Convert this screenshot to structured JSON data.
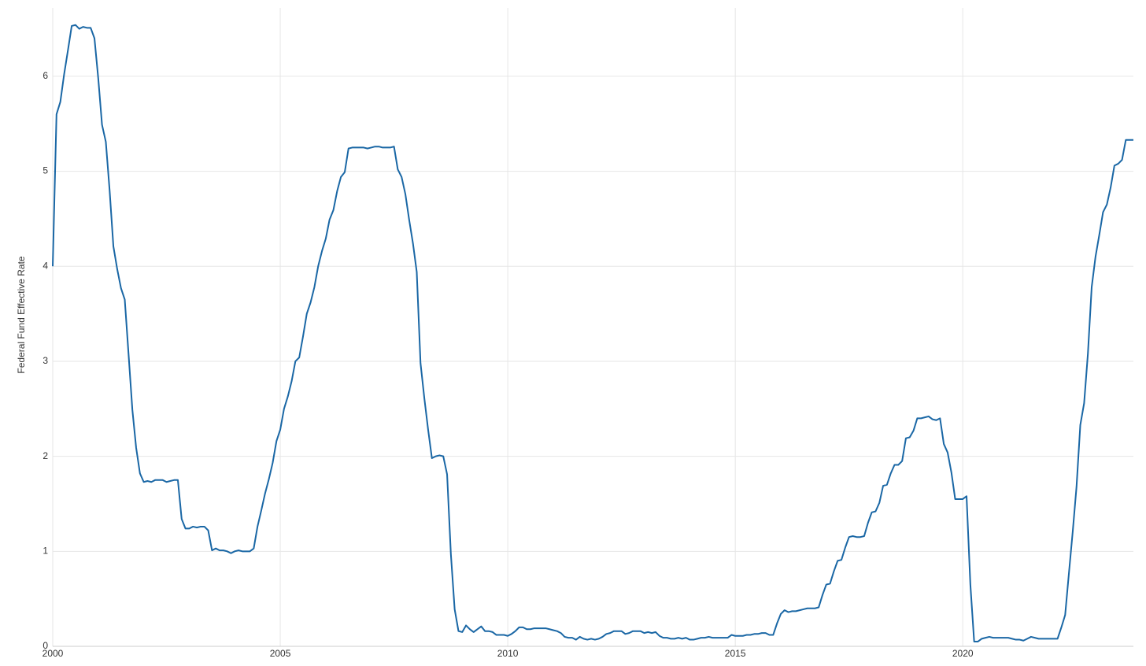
{
  "chart_data": {
    "type": "line",
    "ylabel": "Federal Fund Effective Rate",
    "xlim": [
      2000,
      2023.75
    ],
    "xticks": [
      2000,
      2005,
      2010,
      2015,
      2020
    ],
    "ylim": [
      0,
      6.72
    ],
    "yticks": [
      0,
      1,
      2,
      3,
      4,
      5,
      6
    ],
    "grid": true,
    "x": [
      2000,
      2000.083,
      2000.167,
      2000.25,
      2000.333,
      2000.417,
      2000.5,
      2000.583,
      2000.667,
      2000.75,
      2000.833,
      2000.917,
      2001,
      2001.083,
      2001.167,
      2001.25,
      2001.333,
      2001.417,
      2001.5,
      2001.583,
      2001.667,
      2001.75,
      2001.833,
      2001.917,
      2002,
      2002.083,
      2002.167,
      2002.25,
      2002.333,
      2002.417,
      2002.5,
      2002.583,
      2002.667,
      2002.75,
      2002.833,
      2002.917,
      2003,
      2003.083,
      2003.167,
      2003.25,
      2003.333,
      2003.417,
      2003.5,
      2003.583,
      2003.667,
      2003.75,
      2003.833,
      2003.917,
      2004,
      2004.083,
      2004.167,
      2004.25,
      2004.333,
      2004.417,
      2004.5,
      2004.583,
      2004.667,
      2004.75,
      2004.833,
      2004.917,
      2005,
      2005.083,
      2005.167,
      2005.25,
      2005.333,
      2005.417,
      2005.5,
      2005.583,
      2005.667,
      2005.75,
      2005.833,
      2005.917,
      2006,
      2006.083,
      2006.167,
      2006.25,
      2006.333,
      2006.417,
      2006.5,
      2006.583,
      2006.667,
      2006.75,
      2006.833,
      2006.917,
      2007,
      2007.083,
      2007.167,
      2007.25,
      2007.333,
      2007.417,
      2007.5,
      2007.583,
      2007.667,
      2007.75,
      2007.833,
      2007.917,
      2008,
      2008.083,
      2008.167,
      2008.25,
      2008.333,
      2008.417,
      2008.5,
      2008.583,
      2008.667,
      2008.75,
      2008.833,
      2008.917,
      2009,
      2009.083,
      2009.167,
      2009.25,
      2009.333,
      2009.417,
      2009.5,
      2009.583,
      2009.667,
      2009.75,
      2009.833,
      2009.917,
      2010,
      2010.083,
      2010.167,
      2010.25,
      2010.333,
      2010.417,
      2010.5,
      2010.583,
      2010.667,
      2010.75,
      2010.833,
      2010.917,
      2011,
      2011.083,
      2011.167,
      2011.25,
      2011.333,
      2011.417,
      2011.5,
      2011.583,
      2011.667,
      2011.75,
      2011.833,
      2011.917,
      2012,
      2012.083,
      2012.167,
      2012.25,
      2012.333,
      2012.417,
      2012.5,
      2012.583,
      2012.667,
      2012.75,
      2012.833,
      2012.917,
      2013,
      2013.083,
      2013.167,
      2013.25,
      2013.333,
      2013.417,
      2013.5,
      2013.583,
      2013.667,
      2013.75,
      2013.833,
      2013.917,
      2014,
      2014.083,
      2014.167,
      2014.25,
      2014.333,
      2014.417,
      2014.5,
      2014.583,
      2014.667,
      2014.75,
      2014.833,
      2014.917,
      2015,
      2015.083,
      2015.167,
      2015.25,
      2015.333,
      2015.417,
      2015.5,
      2015.583,
      2015.667,
      2015.75,
      2015.833,
      2015.917,
      2016,
      2016.083,
      2016.167,
      2016.25,
      2016.333,
      2016.417,
      2016.5,
      2016.583,
      2016.667,
      2016.75,
      2016.833,
      2016.917,
      2017,
      2017.083,
      2017.167,
      2017.25,
      2017.333,
      2017.417,
      2017.5,
      2017.583,
      2017.667,
      2017.75,
      2017.833,
      2017.917,
      2018,
      2018.083,
      2018.167,
      2018.25,
      2018.333,
      2018.417,
      2018.5,
      2018.583,
      2018.667,
      2018.75,
      2018.833,
      2018.917,
      2019,
      2019.083,
      2019.167,
      2019.25,
      2019.333,
      2019.417,
      2019.5,
      2019.583,
      2019.667,
      2019.75,
      2019.833,
      2019.917,
      2020,
      2020.083,
      2020.167,
      2020.25,
      2020.333,
      2020.417,
      2020.5,
      2020.583,
      2020.667,
      2020.75,
      2020.833,
      2020.917,
      2021,
      2021.083,
      2021.167,
      2021.25,
      2021.333,
      2021.417,
      2021.5,
      2021.583,
      2021.667,
      2021.75,
      2021.833,
      2021.917,
      2022,
      2022.083,
      2022.167,
      2022.25,
      2022.333,
      2022.417,
      2022.5,
      2022.583,
      2022.667,
      2022.75,
      2022.833,
      2022.917,
      2023,
      2023.083,
      2023.167,
      2023.25,
      2023.333,
      2023.417,
      2023.5,
      2023.583,
      2023.667,
      2023.75
    ],
    "series": [
      {
        "color": "#1a67a5",
        "values": [
          4.0,
          5.6,
          5.73,
          6.02,
          6.27,
          6.53,
          6.54,
          6.5,
          6.52,
          6.51,
          6.51,
          6.4,
          5.98,
          5.49,
          5.31,
          4.8,
          4.21,
          3.97,
          3.77,
          3.65,
          3.07,
          2.49,
          2.09,
          1.82,
          1.73,
          1.74,
          1.73,
          1.75,
          1.75,
          1.75,
          1.73,
          1.74,
          1.75,
          1.75,
          1.34,
          1.24,
          1.24,
          1.26,
          1.25,
          1.26,
          1.26,
          1.22,
          1.01,
          1.03,
          1.01,
          1.01,
          1.0,
          0.98,
          1.0,
          1.01,
          1.0,
          1.0,
          1.0,
          1.03,
          1.26,
          1.43,
          1.61,
          1.76,
          1.93,
          2.16,
          2.28,
          2.5,
          2.63,
          2.79,
          3.0,
          3.04,
          3.26,
          3.5,
          3.62,
          3.78,
          4.0,
          4.16,
          4.29,
          4.49,
          4.59,
          4.79,
          4.94,
          4.99,
          5.24,
          5.25,
          5.25,
          5.25,
          5.25,
          5.24,
          5.25,
          5.26,
          5.26,
          5.25,
          5.25,
          5.25,
          5.26,
          5.02,
          4.94,
          4.76,
          4.49,
          4.24,
          3.94,
          2.98,
          2.61,
          2.28,
          1.98,
          2.0,
          2.01,
          2.0,
          1.81,
          0.97,
          0.39,
          0.16,
          0.15,
          0.22,
          0.18,
          0.15,
          0.18,
          0.21,
          0.16,
          0.16,
          0.15,
          0.12,
          0.12,
          0.12,
          0.11,
          0.13,
          0.16,
          0.2,
          0.2,
          0.18,
          0.18,
          0.19,
          0.19,
          0.19,
          0.19,
          0.18,
          0.17,
          0.16,
          0.14,
          0.1,
          0.09,
          0.09,
          0.07,
          0.1,
          0.08,
          0.07,
          0.08,
          0.07,
          0.08,
          0.1,
          0.13,
          0.14,
          0.16,
          0.16,
          0.16,
          0.13,
          0.14,
          0.16,
          0.16,
          0.16,
          0.14,
          0.15,
          0.14,
          0.15,
          0.11,
          0.09,
          0.09,
          0.08,
          0.08,
          0.09,
          0.08,
          0.09,
          0.07,
          0.07,
          0.08,
          0.09,
          0.09,
          0.1,
          0.09,
          0.09,
          0.09,
          0.09,
          0.09,
          0.12,
          0.11,
          0.11,
          0.11,
          0.12,
          0.12,
          0.13,
          0.13,
          0.14,
          0.14,
          0.12,
          0.12,
          0.24,
          0.34,
          0.38,
          0.36,
          0.37,
          0.37,
          0.38,
          0.39,
          0.4,
          0.4,
          0.4,
          0.41,
          0.54,
          0.65,
          0.66,
          0.79,
          0.9,
          0.91,
          1.04,
          1.15,
          1.16,
          1.15,
          1.15,
          1.16,
          1.3,
          1.41,
          1.42,
          1.51,
          1.69,
          1.7,
          1.82,
          1.91,
          1.91,
          1.95,
          2.19,
          2.2,
          2.27,
          2.4,
          2.4,
          2.41,
          2.42,
          2.39,
          2.38,
          2.4,
          2.13,
          2.04,
          1.83,
          1.55,
          1.55,
          1.55,
          1.58,
          0.65,
          0.05,
          0.05,
          0.08,
          0.09,
          0.1,
          0.09,
          0.09,
          0.09,
          0.09,
          0.09,
          0.08,
          0.07,
          0.07,
          0.06,
          0.08,
          0.1,
          0.09,
          0.08,
          0.08,
          0.08,
          0.08,
          0.08,
          0.08,
          0.2,
          0.33,
          0.77,
          1.21,
          1.68,
          2.33,
          2.56,
          3.08,
          3.78,
          4.1,
          4.33,
          4.57,
          4.65,
          4.83,
          5.06,
          5.08,
          5.12,
          5.33,
          5.33,
          5.33
        ]
      }
    ]
  }
}
